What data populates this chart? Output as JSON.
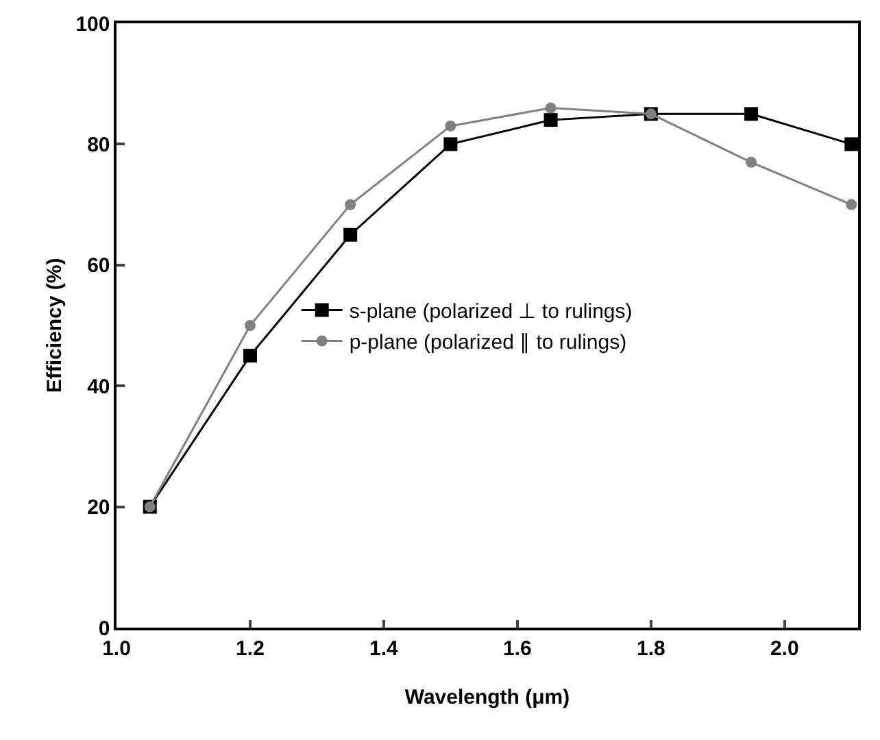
{
  "chart_data": {
    "type": "line",
    "xlabel": "Wavelength (μm)",
    "ylabel": "Efficiency (%)",
    "x": [
      1.05,
      1.2,
      1.35,
      1.5,
      1.65,
      1.8,
      1.95,
      2.1
    ],
    "series": [
      {
        "name": "s-plane (polarized ⊥ to rulings)",
        "color": "#000000",
        "marker": "square",
        "values": [
          20,
          45,
          65,
          80,
          84,
          85,
          85,
          80
        ]
      },
      {
        "name": "p-plane (polarized ∥ to rulings)",
        "color": "#808080",
        "marker": "circle",
        "values": [
          20,
          50,
          70,
          83,
          86,
          85,
          77,
          70
        ]
      }
    ],
    "xlim": [
      1.0,
      2.11
    ],
    "xticks": [
      {
        "value": 1.0,
        "label": "1.0"
      },
      1.2,
      1.4,
      1.6,
      1.8,
      {
        "value": 2.0,
        "label": "2.0"
      }
    ],
    "ylim": [
      0,
      100
    ],
    "yticks": [
      0,
      20,
      40,
      60,
      80,
      100
    ],
    "grid": false,
    "legend": "center",
    "line_style": "solid"
  }
}
